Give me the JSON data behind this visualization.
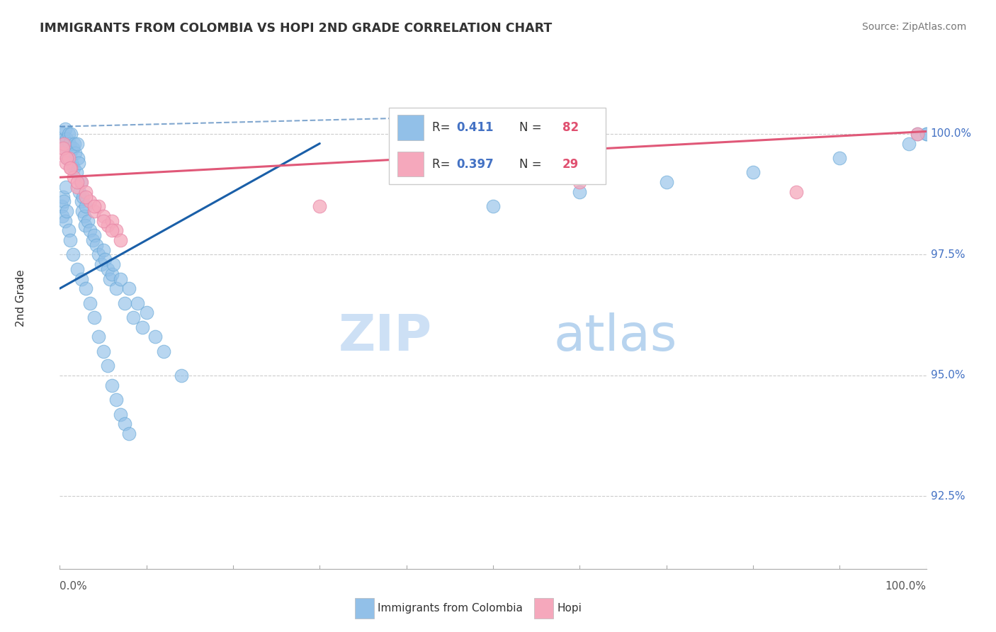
{
  "title": "IMMIGRANTS FROM COLOMBIA VS HOPI 2ND GRADE CORRELATION CHART",
  "source": "Source: ZipAtlas.com",
  "ylabel": "2nd Grade",
  "y_ticks": [
    92.5,
    95.0,
    97.5,
    100.0
  ],
  "x_range": [
    0.0,
    100.0
  ],
  "y_range": [
    91.0,
    101.2
  ],
  "plot_y_min": 92.0,
  "plot_y_max": 100.5,
  "blue_color": "#92c0e8",
  "blue_edge": "#6aaad8",
  "pink_color": "#f5a8bc",
  "pink_edge": "#e888a8",
  "trendline_blue": "#1a5fa8",
  "trendline_pink": "#e05878",
  "grid_color": "#cccccc",
  "axis_color": "#aaaaaa",
  "right_label_color": "#4472c4",
  "watermark_zip_color": "#cde0f5",
  "watermark_atlas_color": "#b8d4ef",
  "legend_r_color": "#333333",
  "legend_val_color": "#4472c4",
  "legend_n_color": "#333333",
  "legend_nval_color": "#e05070",
  "blue_x": [
    0.3,
    0.4,
    0.5,
    0.6,
    0.7,
    0.8,
    0.9,
    1.0,
    1.1,
    1.2,
    1.3,
    1.4,
    1.5,
    1.6,
    1.7,
    1.8,
    1.9,
    2.0,
    2.1,
    2.2,
    2.3,
    2.4,
    2.5,
    2.6,
    2.7,
    2.8,
    2.9,
    3.0,
    3.2,
    3.5,
    3.8,
    4.0,
    4.2,
    4.5,
    4.8,
    5.0,
    5.2,
    5.5,
    5.8,
    6.0,
    6.2,
    6.5,
    7.0,
    7.5,
    8.0,
    8.5,
    9.0,
    9.5,
    10.0,
    11.0,
    12.0,
    14.0,
    0.2,
    0.3,
    0.4,
    0.5,
    0.6,
    0.7,
    0.8,
    1.0,
    1.2,
    1.5,
    2.0,
    2.5,
    3.0,
    3.5,
    4.0,
    4.5,
    5.0,
    5.5,
    6.0,
    6.5,
    7.0,
    7.5,
    8.0,
    50.0,
    60.0,
    70.0,
    80.0,
    90.0,
    98.0,
    99.0,
    100.0,
    100.0
  ],
  "blue_y": [
    99.8,
    100.0,
    99.9,
    100.1,
    99.7,
    99.9,
    99.5,
    100.0,
    99.8,
    99.6,
    100.0,
    99.4,
    99.7,
    99.3,
    99.8,
    99.6,
    99.2,
    99.8,
    99.5,
    99.4,
    98.8,
    99.0,
    98.6,
    98.4,
    98.7,
    98.3,
    98.1,
    98.5,
    98.2,
    98.0,
    97.8,
    97.9,
    97.7,
    97.5,
    97.3,
    97.6,
    97.4,
    97.2,
    97.0,
    97.1,
    97.3,
    96.8,
    97.0,
    96.5,
    96.8,
    96.2,
    96.5,
    96.0,
    96.3,
    95.8,
    95.5,
    95.0,
    98.5,
    98.3,
    98.7,
    98.6,
    98.2,
    98.9,
    98.4,
    98.0,
    97.8,
    97.5,
    97.2,
    97.0,
    96.8,
    96.5,
    96.2,
    95.8,
    95.5,
    95.2,
    94.8,
    94.5,
    94.2,
    94.0,
    93.8,
    98.5,
    98.8,
    99.0,
    99.2,
    99.5,
    99.8,
    100.0,
    100.0,
    100.0
  ],
  "pink_x": [
    0.3,
    0.5,
    0.7,
    1.0,
    1.3,
    1.6,
    2.0,
    2.5,
    3.0,
    3.5,
    4.0,
    4.5,
    5.0,
    5.5,
    6.0,
    6.5,
    7.0,
    0.4,
    0.8,
    1.2,
    2.0,
    3.0,
    4.0,
    5.0,
    6.0,
    30.0,
    60.0,
    85.0,
    99.0
  ],
  "pink_y": [
    99.6,
    99.8,
    99.4,
    99.5,
    99.3,
    99.1,
    98.9,
    99.0,
    98.8,
    98.6,
    98.4,
    98.5,
    98.3,
    98.1,
    98.2,
    98.0,
    97.8,
    99.7,
    99.5,
    99.3,
    99.0,
    98.7,
    98.5,
    98.2,
    98.0,
    98.5,
    99.0,
    98.8,
    100.0
  ],
  "blue_trend_x0": 0.0,
  "blue_trend_y0": 96.8,
  "blue_trend_x1": 30.0,
  "blue_trend_y1": 99.8,
  "pink_trend_x0": 0.0,
  "pink_trend_y0": 99.1,
  "pink_trend_x1": 100.0,
  "pink_trend_y1": 100.05,
  "dashed_x0": 0.0,
  "dashed_y0": 100.15,
  "dashed_x1": 45.0,
  "dashed_y1": 100.35
}
